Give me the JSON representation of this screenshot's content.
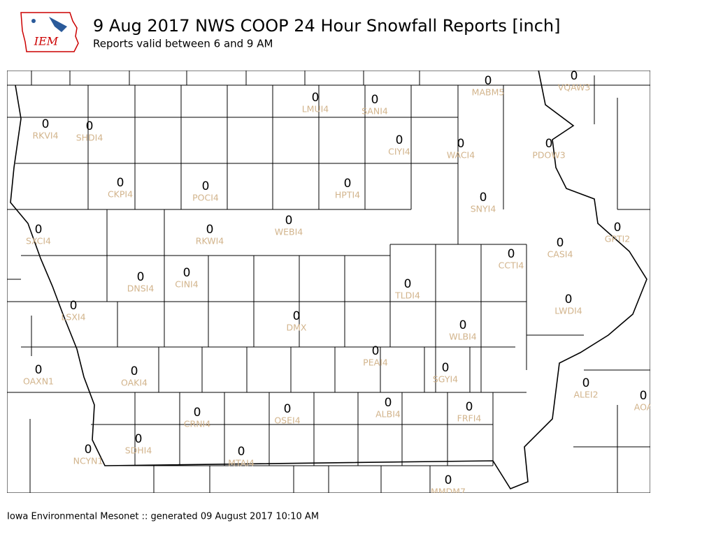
{
  "header": {
    "logo_text": "IEM",
    "title": "9 Aug 2017 NWS COOP 24 Hour Snowfall Reports [inch]",
    "subtitle": "Reports valid between 6 and 9 AM"
  },
  "stations": [
    {
      "id": "MABM5",
      "value": 0
    },
    {
      "id": "VQAW3",
      "value": 0
    },
    {
      "id": "LMUI4",
      "value": 0
    },
    {
      "id": "SANI4",
      "value": 0
    },
    {
      "id": "RKVI4",
      "value": 0
    },
    {
      "id": "SHDI4",
      "value": 0
    },
    {
      "id": "CIYI4",
      "value": 0
    },
    {
      "id": "WACI4",
      "value": 0
    },
    {
      "id": "PDOW3",
      "value": 0
    },
    {
      "id": "CKPI4",
      "value": 0
    },
    {
      "id": "POCI4",
      "value": 0
    },
    {
      "id": "HPTI4",
      "value": 0
    },
    {
      "id": "SNYI4",
      "value": 0
    },
    {
      "id": "SXCI4",
      "value": 0
    },
    {
      "id": "RKWI4",
      "value": 0
    },
    {
      "id": "WEBI4",
      "value": 0
    },
    {
      "id": "GPTI2",
      "value": 0
    },
    {
      "id": "CASI4",
      "value": 0
    },
    {
      "id": "CCTI4",
      "value": 0
    },
    {
      "id": "DNSI4",
      "value": 0
    },
    {
      "id": "CINI4",
      "value": 0
    },
    {
      "id": "TLDI4",
      "value": 0
    },
    {
      "id": "LSXI4",
      "value": 0
    },
    {
      "id": "LWDI4",
      "value": 0
    },
    {
      "id": "DMX",
      "value": 0
    },
    {
      "id": "WLBI4",
      "value": 0
    },
    {
      "id": "PEAI4",
      "value": 0
    },
    {
      "id": "OAXN1",
      "value": 0
    },
    {
      "id": "OAKI4",
      "value": 0
    },
    {
      "id": "SGYI4",
      "value": 0
    },
    {
      "id": "ALEI2",
      "value": 0
    },
    {
      "id": "AOA",
      "value": 0
    },
    {
      "id": "CRNI4",
      "value": 0
    },
    {
      "id": "OSEI4",
      "value": 0
    },
    {
      "id": "ALBI4",
      "value": 0
    },
    {
      "id": "FRFI4",
      "value": 0
    },
    {
      "id": "SDHI4",
      "value": 0
    },
    {
      "id": "NCYN1",
      "value": 0
    },
    {
      "id": "MTAI4",
      "value": 0
    },
    {
      "id": "MMDM7",
      "value": 0
    }
  ],
  "footer": "Iowa Environmental Mesonet :: generated 09 August 2017 10:10 AM"
}
